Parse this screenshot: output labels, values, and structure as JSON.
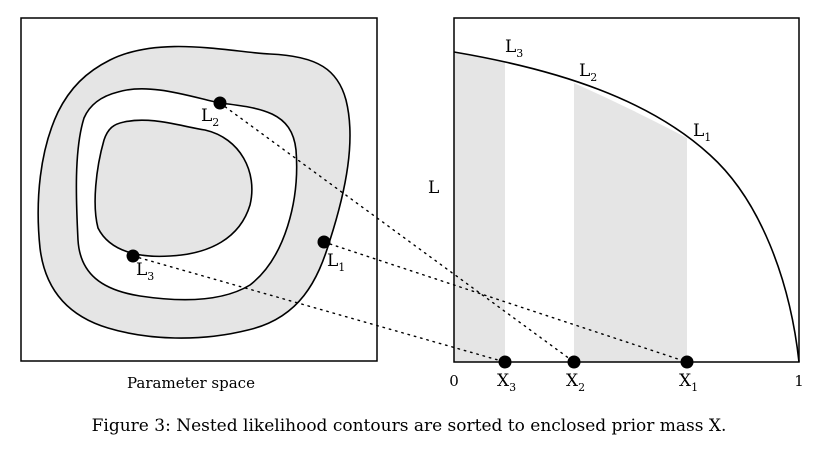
{
  "parameter_panel": {
    "label": "Parameter space",
    "points": [
      {
        "name": "L",
        "sub": "1"
      },
      {
        "name": "L",
        "sub": "2"
      },
      {
        "name": "L",
        "sub": "3"
      }
    ]
  },
  "likelihood_panel": {
    "y_label": "L",
    "x_tick_0": "0",
    "x_tick_1": "1",
    "curve_labels": [
      {
        "name": "L",
        "sub": "3"
      },
      {
        "name": "L",
        "sub": "2"
      },
      {
        "name": "L",
        "sub": "1"
      }
    ],
    "x_markers": [
      {
        "name": "X",
        "sub": "3"
      },
      {
        "name": "X",
        "sub": "2"
      },
      {
        "name": "X",
        "sub": "1"
      }
    ]
  },
  "colors": {
    "shade": "#e5e5e5",
    "ink": "#000000"
  },
  "caption": "Figure 3: Nested likelihood contours are sorted to enclosed prior mass X."
}
